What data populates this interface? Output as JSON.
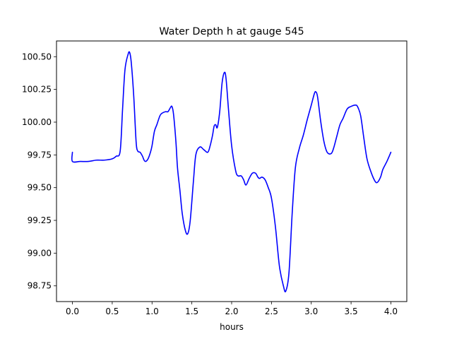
{
  "chart_data": {
    "type": "line",
    "title": "Water Depth h at gauge 545",
    "xlabel": "hours",
    "ylabel": "",
    "xlim": [
      -0.2,
      4.2
    ],
    "ylim": [
      98.63,
      100.62
    ],
    "xticks": [
      0.0,
      0.5,
      1.0,
      1.5,
      2.0,
      2.5,
      3.0,
      3.5,
      4.0
    ],
    "xtick_labels": [
      "0.0",
      "0.5",
      "1.0",
      "1.5",
      "2.0",
      "2.5",
      "3.0",
      "3.5",
      "4.0"
    ],
    "yticks": [
      98.75,
      99.0,
      99.25,
      99.5,
      99.75,
      100.0,
      100.25,
      100.5
    ],
    "ytick_labels": [
      "98.75",
      "99.00",
      "99.25",
      "99.50",
      "99.75",
      "100.00",
      "100.25",
      "100.50"
    ],
    "grid": false,
    "series": [
      {
        "color": "#0000ff",
        "x": [
          0.0,
          0.0,
          0.1,
          0.2,
          0.3,
          0.4,
          0.5,
          0.55,
          0.6,
          0.63,
          0.66,
          0.7,
          0.72,
          0.74,
          0.77,
          0.8,
          0.82,
          0.85,
          0.88,
          0.9,
          0.92,
          0.95,
          0.98,
          1.0,
          1.03,
          1.06,
          1.1,
          1.13,
          1.17,
          1.2,
          1.23,
          1.25,
          1.27,
          1.3,
          1.32,
          1.35,
          1.38,
          1.42,
          1.45,
          1.48,
          1.52,
          1.55,
          1.6,
          1.65,
          1.7,
          1.73,
          1.76,
          1.78,
          1.8,
          1.82,
          1.85,
          1.88,
          1.91,
          1.93,
          1.96,
          2.0,
          2.05,
          2.08,
          2.12,
          2.15,
          2.18,
          2.22,
          2.26,
          2.3,
          2.33,
          2.35,
          2.38,
          2.42,
          2.46,
          2.5,
          2.55,
          2.6,
          2.65,
          2.68,
          2.72,
          2.76,
          2.8,
          2.85,
          2.9,
          2.95,
          3.0,
          3.04,
          3.06,
          3.08,
          3.12,
          3.16,
          3.2,
          3.25,
          3.28,
          3.32,
          3.36,
          3.4,
          3.45,
          3.5,
          3.55,
          3.58,
          3.62,
          3.66,
          3.7,
          3.75,
          3.8,
          3.83,
          3.87,
          3.9,
          3.95,
          4.0
        ],
        "y": [
          99.77,
          99.7,
          99.7,
          99.7,
          99.71,
          99.71,
          99.72,
          99.74,
          99.78,
          100.1,
          100.4,
          100.52,
          100.53,
          100.45,
          100.2,
          99.85,
          99.78,
          99.77,
          99.74,
          99.71,
          99.7,
          99.72,
          99.77,
          99.82,
          99.93,
          99.98,
          100.05,
          100.07,
          100.08,
          100.08,
          100.11,
          100.12,
          100.06,
          99.85,
          99.65,
          99.48,
          99.3,
          99.17,
          99.15,
          99.25,
          99.55,
          99.75,
          99.81,
          99.79,
          99.77,
          99.82,
          99.9,
          99.97,
          99.98,
          99.96,
          100.08,
          100.3,
          100.38,
          100.33,
          100.1,
          99.82,
          99.63,
          99.59,
          99.59,
          99.56,
          99.52,
          99.57,
          99.61,
          99.61,
          99.58,
          99.57,
          99.58,
          99.56,
          99.5,
          99.42,
          99.2,
          98.9,
          98.75,
          98.71,
          98.85,
          99.3,
          99.65,
          99.8,
          99.9,
          100.02,
          100.13,
          100.22,
          100.23,
          100.19,
          100.0,
          99.85,
          99.77,
          99.76,
          99.8,
          99.89,
          99.98,
          100.03,
          100.1,
          100.12,
          100.13,
          100.12,
          100.05,
          99.88,
          99.72,
          99.62,
          99.55,
          99.54,
          99.58,
          99.64,
          99.7,
          99.77
        ]
      }
    ]
  }
}
